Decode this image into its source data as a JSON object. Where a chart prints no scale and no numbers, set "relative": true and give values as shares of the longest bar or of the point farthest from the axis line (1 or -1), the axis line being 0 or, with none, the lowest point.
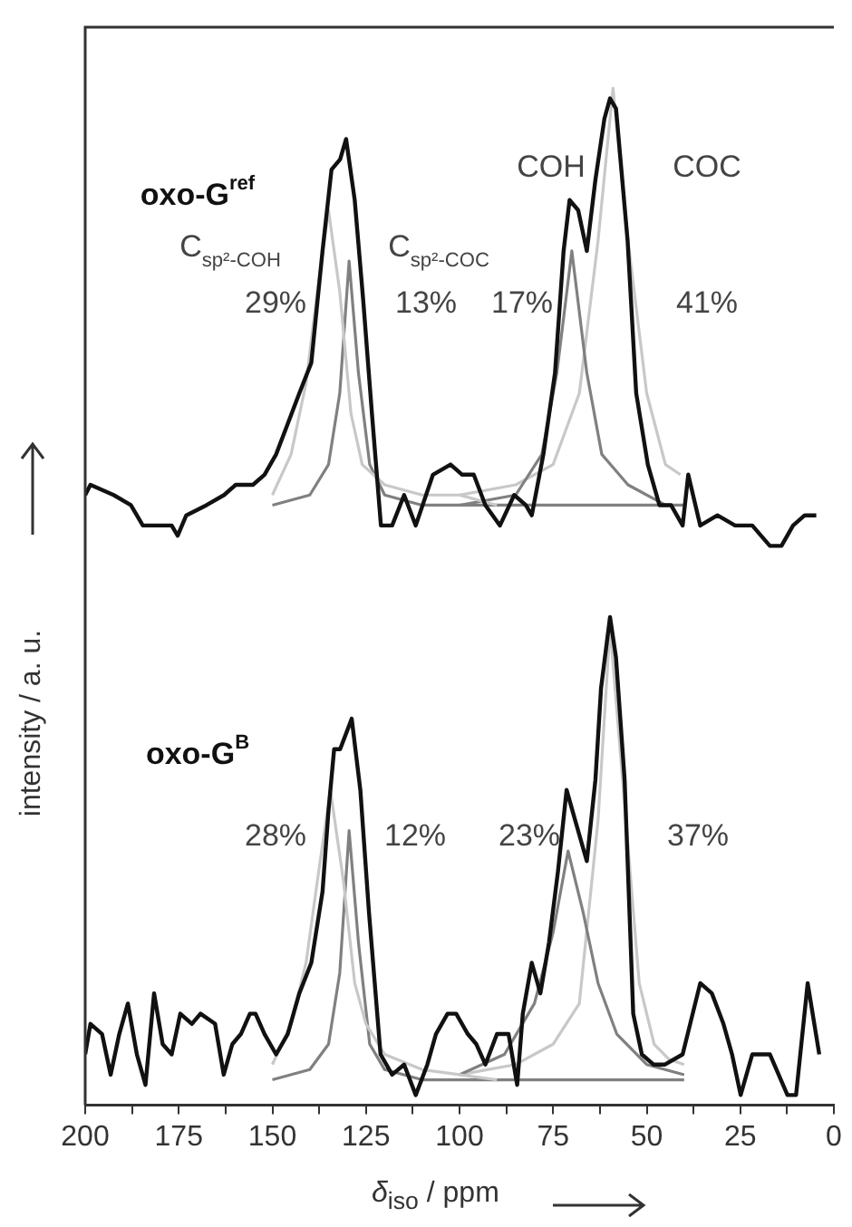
{
  "chart_data": {
    "type": "line",
    "xlabel": "δ$_{iso}$ / ppm",
    "ylabel": "intensity / a. u.",
    "relative": true,
    "legend": false,
    "marker": "none",
    "line_style": "solid",
    "xlim": [
      200,
      0
    ],
    "xticks": [
      200,
      {
        "value": 187.5,
        "label": null
      },
      175,
      {
        "value": 162.5,
        "label": null
      },
      150,
      {
        "value": 137.5,
        "label": null
      },
      125,
      {
        "value": 112.5,
        "label": null
      },
      100,
      {
        "value": 87.5,
        "label": null
      },
      75,
      {
        "value": 62.5,
        "label": null
      },
      50,
      {
        "value": 37.5,
        "label": null
      },
      25,
      {
        "value": 12.5,
        "label": null
      },
      0
    ],
    "series": [
      {
        "name": "oxo-G$^{ref}$",
        "color": "#111111",
        "x": [
          200,
          198.6,
          192.4,
          187.8,
          184.6,
          180.8,
          176.9,
          175.3,
          173,
          167.6,
          162.9,
          159.8,
          155.2,
          152.1,
          149,
          145.9,
          142.8,
          139.6,
          136.6,
          134.2,
          131.9,
          130.3,
          128,
          125.7,
          123.4,
          121,
          118,
          114.8,
          111.7,
          107.1,
          102.4,
          99.3,
          96.2,
          93.1,
          89.2,
          85.4,
          82.3,
          80.7,
          77.6,
          74.5,
          72.2,
          70.6,
          68.3,
          66,
          63.7,
          61.3,
          59.8,
          58.2,
          55.1,
          52.8,
          49.7,
          46.6,
          43.5,
          40.4,
          38.9,
          35.7,
          31.1,
          26.4,
          21.8,
          17.1,
          14,
          10.9,
          7.8,
          4.7
        ],
        "values": [
          0.6,
          0.61,
          0.6,
          0.59,
          0.57,
          0.57,
          0.57,
          0.56,
          0.58,
          0.59,
          0.6,
          0.61,
          0.61,
          0.62,
          0.64,
          0.67,
          0.7,
          0.73,
          0.84,
          0.92,
          0.93,
          0.95,
          0.89,
          0.79,
          0.68,
          0.57,
          0.57,
          0.6,
          0.57,
          0.62,
          0.63,
          0.62,
          0.62,
          0.59,
          0.57,
          0.6,
          0.59,
          0.58,
          0.64,
          0.72,
          0.84,
          0.89,
          0.88,
          0.84,
          0.91,
          0.97,
          0.99,
          0.98,
          0.85,
          0.7,
          0.63,
          0.59,
          0.59,
          0.57,
          0.62,
          0.57,
          0.58,
          0.57,
          0.57,
          0.55,
          0.55,
          0.57,
          0.58,
          0.58
        ]
      },
      {
        "color": "#c8c8c8",
        "x": [
          150,
          145,
          141,
          138,
          135,
          132,
          129,
          126,
          120,
          110,
          100,
          90
        ],
        "values": [
          0.6,
          0.64,
          0.71,
          0.8,
          0.88,
          0.8,
          0.68,
          0.63,
          0.61,
          0.6,
          0.6,
          0.59
        ]
      },
      {
        "color": "#808080",
        "x": [
          150,
          140,
          135,
          132,
          129.5,
          127,
          124,
          120,
          110,
          100,
          40
        ],
        "values": [
          0.59,
          0.6,
          0.63,
          0.7,
          0.83,
          0.72,
          0.63,
          0.6,
          0.59,
          0.59,
          0.59
        ]
      },
      {
        "color": "#808080",
        "x": [
          100,
          85,
          78,
          74,
          70,
          66,
          62,
          55,
          45
        ],
        "values": [
          0.59,
          0.6,
          0.64,
          0.72,
          0.84,
          0.72,
          0.64,
          0.61,
          0.59
        ]
      },
      {
        "color": "#c8c8c8",
        "x": [
          100,
          85,
          75,
          68,
          63,
          59,
          55,
          50,
          45,
          41
        ],
        "values": [
          0.6,
          0.61,
          0.63,
          0.7,
          0.85,
          1,
          0.85,
          0.7,
          0.63,
          0.62
        ]
      },
      {
        "name": "oxo-G$^{B}$",
        "color": "#111111",
        "x": [
          200,
          198.6,
          195.5,
          193.2,
          190.9,
          188.6,
          186.2,
          183.9,
          181.6,
          179.3,
          176.9,
          174.6,
          171.5,
          169.2,
          165.3,
          163,
          160.7,
          158.4,
          156,
          154.5,
          152.1,
          149,
          145.9,
          142.8,
          139.6,
          136.6,
          135,
          133.5,
          131.9,
          128.8,
          126.5,
          124.2,
          121.1,
          118,
          114.8,
          111.7,
          108.6,
          106.3,
          103.2,
          100.9,
          97.8,
          95.5,
          93.1,
          90,
          86.9,
          84.6,
          83.1,
          80.7,
          78.4,
          76.1,
          73.7,
          71.4,
          69.1,
          66,
          63.7,
          62.2,
          59.8,
          58.2,
          55.9,
          53.6,
          51.3,
          48.2,
          45.1,
          40.4,
          35.7,
          32.6,
          29.5,
          27.2,
          24.9,
          21.8,
          17.1,
          12.4,
          10.1,
          7,
          3.9
        ],
        "values": [
          0.05,
          0.08,
          0.07,
          0.03,
          0.07,
          0.1,
          0.05,
          0.02,
          0.11,
          0.06,
          0.05,
          0.09,
          0.08,
          0.09,
          0.08,
          0.03,
          0.06,
          0.07,
          0.09,
          0.09,
          0.07,
          0.05,
          0.07,
          0.11,
          0.14,
          0.21,
          0.29,
          0.35,
          0.35,
          0.38,
          0.31,
          0.19,
          0.05,
          0.03,
          0.04,
          0.01,
          0.04,
          0.07,
          0.09,
          0.09,
          0.07,
          0.06,
          0.04,
          0.07,
          0.07,
          0.02,
          0.09,
          0.14,
          0.11,
          0.16,
          0.23,
          0.31,
          0.28,
          0.24,
          0.32,
          0.41,
          0.48,
          0.44,
          0.32,
          0.09,
          0.05,
          0.04,
          0.04,
          0.05,
          0.12,
          0.11,
          0.08,
          0.05,
          0.01,
          0.05,
          0.05,
          0.01,
          0.01,
          0.12,
          0.05
        ]
      },
      {
        "color": "#c8c8c8",
        "x": [
          150,
          145,
          141,
          138,
          134.5,
          131,
          128,
          125,
          120,
          110,
          100,
          90
        ],
        "values": [
          0.04,
          0.08,
          0.14,
          0.22,
          0.31,
          0.22,
          0.12,
          0.08,
          0.05,
          0.035,
          0.03,
          0.025
        ]
      },
      {
        "color": "#808080",
        "x": [
          150,
          140,
          135,
          132,
          129.5,
          127,
          124,
          120,
          110,
          100,
          40
        ],
        "values": [
          0.025,
          0.035,
          0.06,
          0.13,
          0.27,
          0.16,
          0.06,
          0.035,
          0.025,
          0.025,
          0.025
        ]
      },
      {
        "color": "#808080",
        "x": [
          100,
          88,
          80,
          75,
          71,
          67,
          63,
          58,
          50,
          40
        ],
        "values": [
          0.03,
          0.05,
          0.1,
          0.17,
          0.25,
          0.19,
          0.12,
          0.07,
          0.04,
          0.03
        ]
      },
      {
        "color": "#c8c8c8",
        "x": [
          100,
          85,
          75,
          68,
          63,
          59.8,
          56,
          52,
          48,
          44,
          40
        ],
        "values": [
          0.03,
          0.04,
          0.06,
          0.1,
          0.28,
          0.47,
          0.3,
          0.12,
          0.06,
          0.045,
          0.04
        ]
      }
    ],
    "annotations": [
      "C$_{sp²-COH}$",
      "29%",
      "C$_{sp²-COC}$",
      "13%",
      "COH",
      "17%",
      "COC",
      "41%",
      "28%",
      "12%",
      "23%",
      "37%"
    ]
  }
}
